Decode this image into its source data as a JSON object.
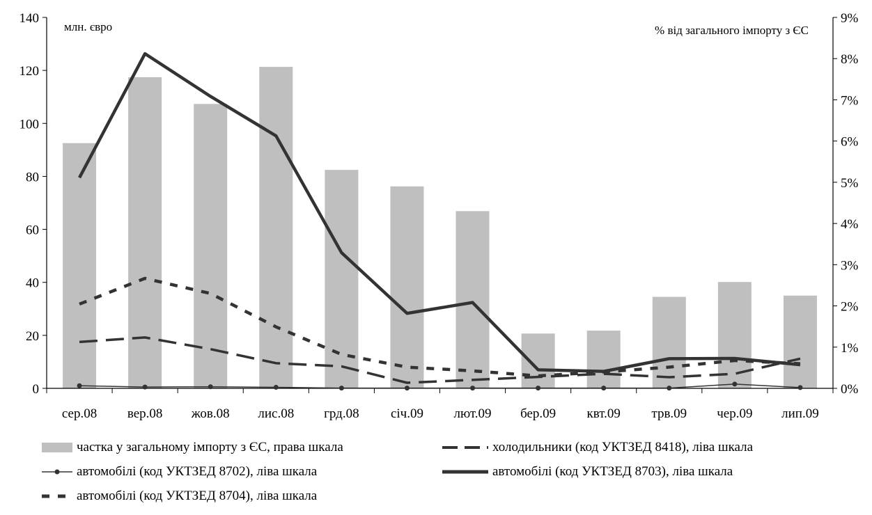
{
  "chart_data": {
    "type": "bar+line",
    "categories": [
      "сер.08",
      "вер.08",
      "жов.08",
      "лис.08",
      "грд.08",
      "січ.09",
      "лют.09",
      "бер.09",
      "квт.09",
      "трв.09",
      "чер.09",
      "лип.09"
    ],
    "left_axis": {
      "unit_label": "млн. євро",
      "min": 0,
      "max": 140,
      "ticks": [
        "0",
        "20",
        "40",
        "60",
        "80",
        "100",
        "120",
        "140"
      ]
    },
    "right_axis": {
      "unit_label": "% від загального імпорту з ЄС",
      "min": 0,
      "max": 9,
      "ticks": [
        "0%",
        "1%",
        "2%",
        "3%",
        "4%",
        "5%",
        "6%",
        "7%",
        "8%",
        "9%"
      ]
    },
    "bars": {
      "name": "частка у загальному імпорту з ЄС, права шкала",
      "axis": "right",
      "color": "#bfbfbf",
      "values": [
        5.95,
        7.55,
        6.9,
        7.8,
        5.3,
        4.9,
        4.3,
        1.33,
        1.4,
        2.22,
        2.58,
        2.25
      ]
    },
    "series": [
      {
        "name": "холодильники (код УКТЗЕД 8418), ліва шкала",
        "style": "long-dash",
        "color": "#333333",
        "values": [
          17.5,
          19.2,
          14.8,
          9.5,
          8.3,
          2.1,
          3.2,
          4.3,
          5.5,
          4.2,
          5.5,
          11.2
        ]
      },
      {
        "name": "автомобілі (код УКТЗЕД 8702), ліва шкала",
        "style": "thin-marker",
        "color": "#333333",
        "values": [
          1.0,
          0.5,
          0.6,
          0.4,
          0.1,
          0.1,
          0.1,
          0.1,
          0.1,
          0.1,
          1.6,
          0.3
        ]
      },
      {
        "name": "автомобілі (код УКТЗЕД 8703), ліва шкала",
        "style": "thick-solid",
        "color": "#333333",
        "values": [
          79.5,
          126.3,
          110.2,
          95.3,
          51.2,
          28.3,
          32.4,
          7.0,
          6.4,
          11.2,
          11.3,
          8.9
        ]
      },
      {
        "name": "автомобілі (код УКТЗЕД 8704), ліва шкала",
        "style": "short-dash",
        "color": "#333333",
        "values": [
          31.8,
          41.5,
          35.8,
          23.2,
          12.8,
          8.0,
          6.6,
          4.7,
          6.2,
          8.0,
          10.5,
          9.3
        ]
      }
    ],
    "grid": false,
    "legend_position": "bottom"
  }
}
